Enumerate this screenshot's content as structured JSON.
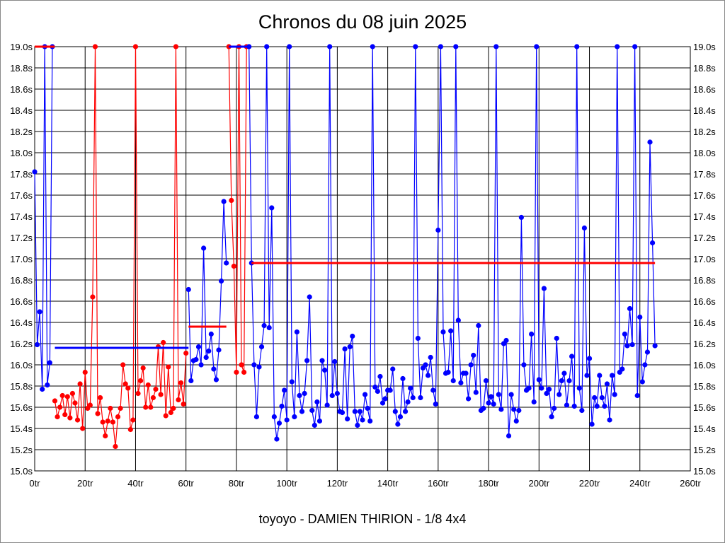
{
  "chart_data": {
    "type": "line",
    "title": "Chronos du 08 juin 2025",
    "footer": "toyoyo - DAMIEN THIRION - 1/8 4x4",
    "xlabel": "",
    "ylabel": "",
    "xlim": [
      0,
      260
    ],
    "ylim": [
      15.0,
      19.0
    ],
    "x_ticks": [
      "0tr",
      "20tr",
      "40tr",
      "60tr",
      "80tr",
      "100tr",
      "120tr",
      "140tr",
      "160tr",
      "180tr",
      "200tr",
      "220tr",
      "240tr",
      "260tr"
    ],
    "y_ticks": [
      "15.0s",
      "15.2s",
      "15.4s",
      "15.6s",
      "15.8s",
      "16.0s",
      "16.2s",
      "16.4s",
      "16.6s",
      "16.8s",
      "17.0s",
      "17.2s",
      "17.4s",
      "17.6s",
      "17.8s",
      "18.0s",
      "18.2s",
      "18.4s",
      "18.6s",
      "18.8s",
      "19.0s"
    ],
    "grid": true,
    "colors": {
      "blue": "#0000ff",
      "red": "#ff0000"
    },
    "series": [
      {
        "name": "segment-1",
        "color": "blue",
        "start_lap": 0,
        "values": [
          17.82,
          16.19,
          16.5,
          15.77,
          19.0,
          15.81,
          16.02,
          19.0
        ]
      },
      {
        "name": "segment-2",
        "color": "red",
        "start_lap": 8,
        "values": [
          15.66,
          15.51,
          15.6,
          15.71,
          15.53,
          15.7,
          15.5,
          15.73,
          15.64,
          15.48,
          15.82,
          15.4,
          15.93,
          15.59,
          15.62,
          16.64,
          19.0,
          15.54,
          15.69,
          15.46,
          15.33,
          15.47,
          15.59,
          15.46,
          15.23,
          15.51,
          15.59,
          16.0,
          15.82,
          15.78,
          15.39,
          15.48,
          19.0,
          15.73,
          15.85,
          15.97,
          15.6,
          15.81,
          15.6,
          15.69,
          15.77,
          16.17,
          15.72,
          16.21,
          15.52,
          15.98,
          15.55,
          15.59,
          19.0,
          15.67,
          15.83,
          15.63,
          16.11
        ]
      },
      {
        "name": "segment-3",
        "color": "blue",
        "start_lap": 61,
        "values": [
          16.71,
          15.85,
          16.04,
          16.05,
          16.17,
          16.0,
          17.1,
          16.07,
          16.13,
          16.29,
          15.96,
          15.86,
          16.14,
          16.79,
          17.54,
          16.96
        ]
      },
      {
        "name": "segment-4",
        "color": "red",
        "start_lap": 77,
        "values": [
          19.0,
          17.55,
          16.93,
          15.93,
          19.0,
          16.0,
          15.93,
          19.0
        ]
      },
      {
        "name": "segment-5",
        "color": "blue",
        "start_lap": 85,
        "values": [
          19.0,
          16.96,
          16.0,
          15.51,
          15.98,
          16.17,
          16.37,
          19.0,
          16.35,
          17.48,
          15.51,
          15.3,
          15.45,
          15.61,
          15.76,
          15.48,
          19.0,
          15.84,
          15.51,
          16.31,
          15.71,
          15.56,
          15.73,
          16.04,
          16.64,
          15.57,
          15.43,
          15.65,
          15.47,
          16.04,
          15.95,
          15.62,
          19.0,
          15.71,
          16.03,
          15.73,
          15.56,
          15.55,
          16.15,
          15.49,
          16.17,
          16.27,
          15.56,
          15.43,
          15.56,
          15.48,
          15.72,
          15.59,
          15.47,
          19.0,
          15.79,
          15.75,
          15.89,
          15.64,
          15.68,
          15.76,
          15.76,
          15.96,
          15.56,
          15.44,
          15.51,
          15.87,
          15.56,
          15.65,
          15.78,
          15.69,
          19.0,
          16.25,
          15.69,
          15.97,
          16.0,
          15.9,
          16.07,
          15.76,
          15.63,
          17.27,
          19.0,
          16.31,
          15.92,
          15.93,
          16.32,
          15.85,
          19.0,
          16.42,
          15.83,
          15.92,
          15.92,
          15.68,
          16.0,
          16.09,
          15.74,
          16.37,
          15.57,
          15.59,
          15.85,
          15.64,
          15.7,
          15.63,
          19.0,
          15.72,
          15.58,
          16.2,
          16.23,
          15.33,
          15.72,
          15.58,
          15.47,
          15.57,
          17.39,
          16.0,
          15.76,
          15.78,
          16.29,
          15.65,
          19.0,
          15.86,
          15.78,
          16.72,
          15.73,
          15.77,
          15.51,
          15.59,
          16.25,
          15.72,
          15.85,
          15.92,
          15.62,
          15.85,
          16.08,
          15.61,
          19.0,
          15.78,
          15.57,
          17.29,
          15.9,
          16.06,
          15.44,
          15.69,
          15.61,
          15.9,
          15.69,
          15.61,
          15.82,
          15.48,
          15.9,
          15.72,
          19.0,
          15.93,
          15.96,
          16.29,
          16.18,
          16.53,
          16.19,
          19.0,
          15.71,
          16.45,
          15.84,
          16.0,
          16.12,
          18.1,
          17.15,
          16.18
        ]
      }
    ],
    "average_lines": [
      {
        "segment": "segment-1",
        "color": "red",
        "value": 19.0,
        "from_lap": 0,
        "to_lap": 8
      },
      {
        "segment": "segment-2",
        "color": "blue",
        "value": 16.16,
        "from_lap": 8,
        "to_lap": 61
      },
      {
        "segment": "segment-3",
        "color": "red",
        "value": 16.36,
        "from_lap": 61,
        "to_lap": 76
      },
      {
        "segment": "segment-4",
        "color": "blue",
        "value": 19.0,
        "from_lap": 77,
        "to_lap": 85
      },
      {
        "segment": "segment-5",
        "color": "red",
        "value": 16.96,
        "from_lap": 86,
        "to_lap": 246
      }
    ]
  }
}
